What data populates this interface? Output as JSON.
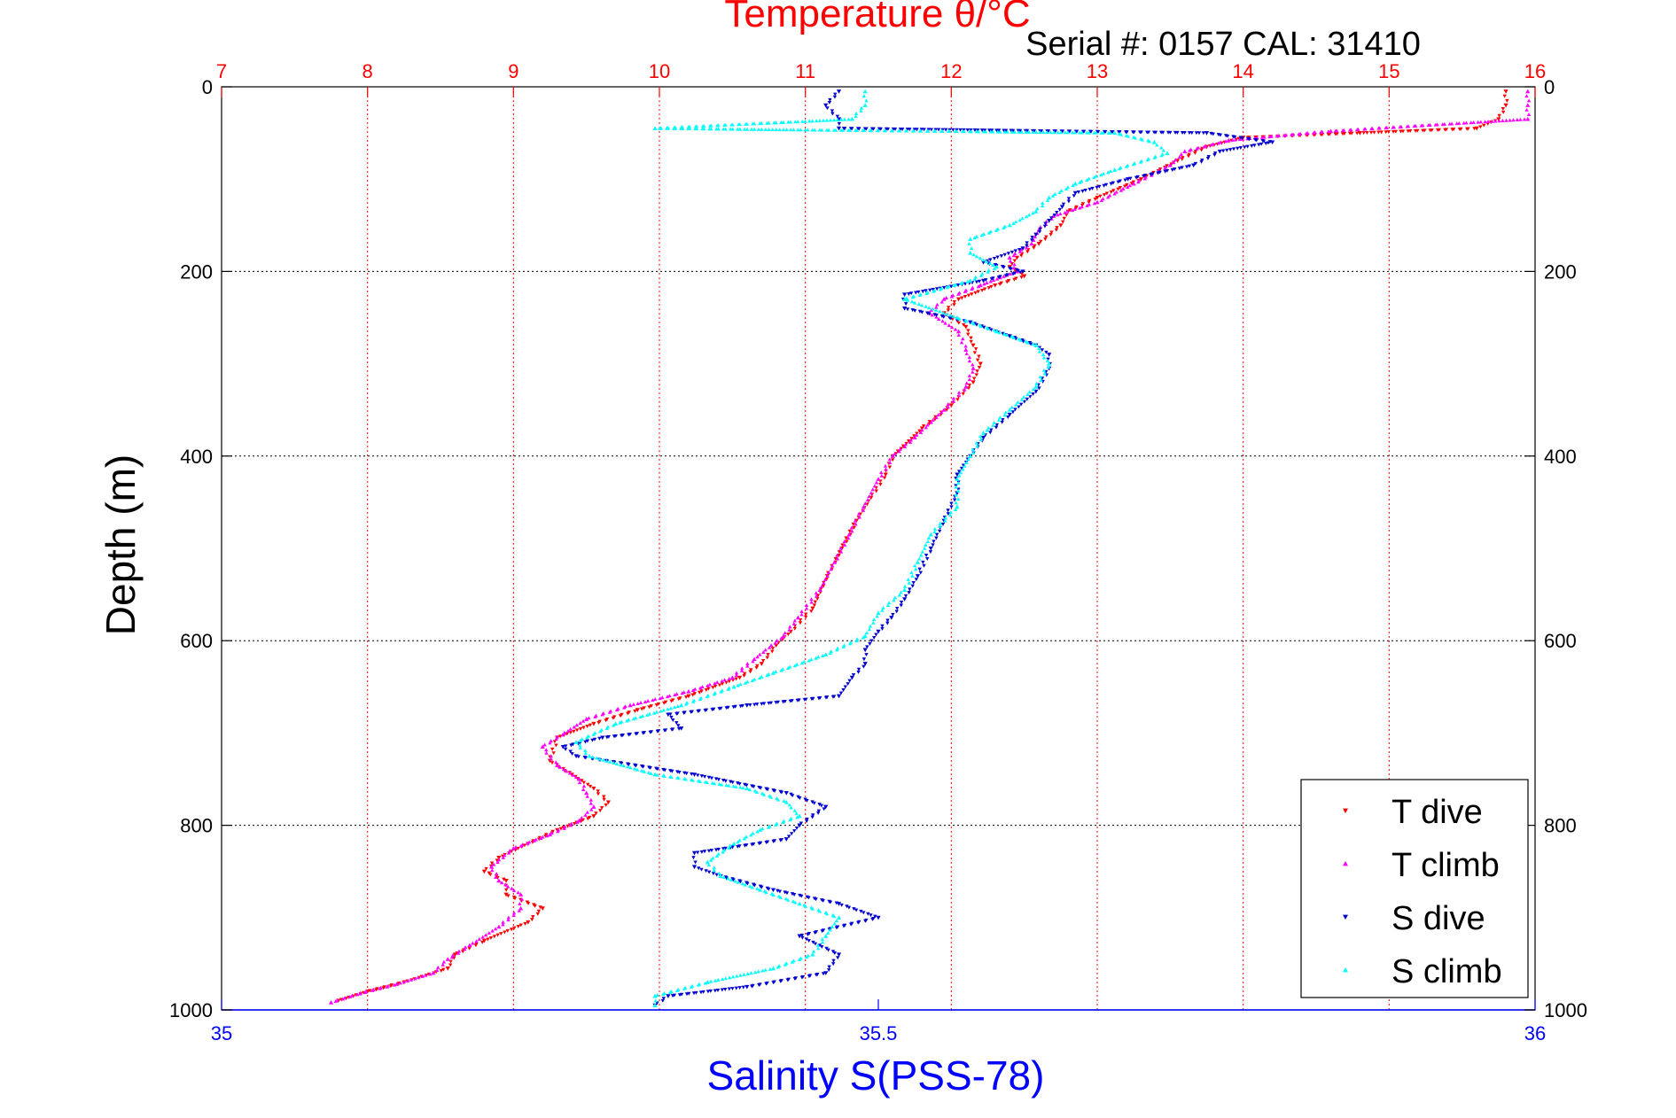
{
  "chart_data": {
    "type": "scatter",
    "title": "Temperature θ/°C",
    "subtitle": "Serial #: 0157  CAL: 31410",
    "ylabel": "Depth (m)",
    "xlabel_top": "Temperature θ/°C",
    "xlabel_bottom": "Salinity S(PSS-78)",
    "ylim": [
      0,
      1000
    ],
    "y_reversed": true,
    "x_top_lim": [
      7,
      16
    ],
    "x_bottom_lim": [
      35,
      36
    ],
    "x_top_ticks": [
      "7",
      "8",
      "9",
      "10",
      "11",
      "12",
      "13",
      "14",
      "15",
      "16"
    ],
    "x_bottom_ticks": [
      "35",
      "35.5",
      "36"
    ],
    "y_ticks": [
      "0",
      "200",
      "400",
      "600",
      "800",
      "1000"
    ],
    "grid": true,
    "legend_position": "bottom-right",
    "colors": {
      "temperature_axis": "#ff0000",
      "salinity_axis": "#0000ff",
      "t_dive": "#ff0000",
      "t_climb": "#ff00ff",
      "s_dive": "#0000d0",
      "s_climb": "#00ffff"
    },
    "series": [
      {
        "name": "T dive",
        "axis": "temperature",
        "marker": "triangle-down",
        "points": [
          [
            15.8,
            5
          ],
          [
            15.8,
            20
          ],
          [
            15.75,
            35
          ],
          [
            15.6,
            45
          ],
          [
            14.8,
            50
          ],
          [
            14.0,
            55
          ],
          [
            13.75,
            65
          ],
          [
            13.55,
            80
          ],
          [
            13.3,
            100
          ],
          [
            13.0,
            120
          ],
          [
            12.8,
            135
          ],
          [
            12.75,
            150
          ],
          [
            12.6,
            170
          ],
          [
            12.45,
            185
          ],
          [
            12.4,
            195
          ],
          [
            12.5,
            205
          ],
          [
            12.3,
            215
          ],
          [
            12.05,
            230
          ],
          [
            11.95,
            245
          ],
          [
            12.1,
            260
          ],
          [
            12.15,
            280
          ],
          [
            12.2,
            300
          ],
          [
            12.15,
            320
          ],
          [
            12.0,
            345
          ],
          [
            11.8,
            370
          ],
          [
            11.6,
            400
          ],
          [
            11.55,
            420
          ],
          [
            11.45,
            445
          ],
          [
            11.35,
            470
          ],
          [
            11.25,
            500
          ],
          [
            11.15,
            530
          ],
          [
            11.05,
            565
          ],
          [
            10.9,
            590
          ],
          [
            10.8,
            605
          ],
          [
            10.7,
            625
          ],
          [
            10.55,
            640
          ],
          [
            10.2,
            660
          ],
          [
            9.85,
            675
          ],
          [
            9.55,
            690
          ],
          [
            9.3,
            705
          ],
          [
            9.25,
            730
          ],
          [
            9.4,
            745
          ],
          [
            9.55,
            760
          ],
          [
            9.65,
            775
          ],
          [
            9.55,
            790
          ],
          [
            9.3,
            805
          ],
          [
            9.1,
            820
          ],
          [
            8.9,
            835
          ],
          [
            8.8,
            850
          ],
          [
            8.95,
            860
          ],
          [
            8.95,
            875
          ],
          [
            9.2,
            890
          ],
          [
            9.1,
            905
          ],
          [
            8.8,
            925
          ],
          [
            8.6,
            940
          ],
          [
            8.55,
            955
          ],
          [
            8.25,
            970
          ],
          [
            8.0,
            980
          ],
          [
            7.8,
            990
          ]
        ]
      },
      {
        "name": "T climb",
        "axis": "temperature",
        "marker": "triangle-up",
        "points": [
          [
            15.95,
            5
          ],
          [
            15.95,
            20
          ],
          [
            15.95,
            35
          ],
          [
            14.6,
            48
          ],
          [
            13.9,
            58
          ],
          [
            13.6,
            70
          ],
          [
            13.5,
            85
          ],
          [
            13.25,
            105
          ],
          [
            13.0,
            125
          ],
          [
            12.7,
            140
          ],
          [
            12.6,
            155
          ],
          [
            12.55,
            170
          ],
          [
            12.4,
            185
          ],
          [
            12.45,
            200
          ],
          [
            12.2,
            215
          ],
          [
            11.95,
            230
          ],
          [
            11.85,
            245
          ],
          [
            12.05,
            265
          ],
          [
            12.1,
            285
          ],
          [
            12.15,
            305
          ],
          [
            12.1,
            325
          ],
          [
            11.95,
            350
          ],
          [
            11.75,
            380
          ],
          [
            11.6,
            400
          ],
          [
            11.5,
            425
          ],
          [
            11.4,
            455
          ],
          [
            11.3,
            485
          ],
          [
            11.2,
            515
          ],
          [
            11.1,
            545
          ],
          [
            10.95,
            575
          ],
          [
            10.85,
            595
          ],
          [
            10.65,
            620
          ],
          [
            10.5,
            640
          ],
          [
            10.2,
            655
          ],
          [
            9.8,
            670
          ],
          [
            9.5,
            685
          ],
          [
            9.35,
            700
          ],
          [
            9.2,
            715
          ],
          [
            9.3,
            735
          ],
          [
            9.45,
            750
          ],
          [
            9.5,
            765
          ],
          [
            9.55,
            780
          ],
          [
            9.45,
            795
          ],
          [
            9.25,
            810
          ],
          [
            9.0,
            825
          ],
          [
            8.85,
            845
          ],
          [
            8.9,
            860
          ],
          [
            9.05,
            875
          ],
          [
            9.05,
            890
          ],
          [
            8.9,
            910
          ],
          [
            8.7,
            930
          ],
          [
            8.55,
            945
          ],
          [
            8.45,
            960
          ],
          [
            8.2,
            972
          ],
          [
            7.95,
            982
          ],
          [
            7.75,
            992
          ]
        ]
      },
      {
        "name": "S dive",
        "axis": "salinity",
        "marker": "triangle-down",
        "points": [
          [
            35.47,
            5
          ],
          [
            35.46,
            20
          ],
          [
            35.47,
            35
          ],
          [
            35.47,
            45
          ],
          [
            35.75,
            50
          ],
          [
            35.8,
            60
          ],
          [
            35.76,
            70
          ],
          [
            35.74,
            85
          ],
          [
            35.69,
            100
          ],
          [
            35.65,
            115
          ],
          [
            35.64,
            130
          ],
          [
            35.63,
            145
          ],
          [
            35.62,
            160
          ],
          [
            35.61,
            175
          ],
          [
            35.58,
            190
          ],
          [
            35.61,
            200
          ],
          [
            35.58,
            210
          ],
          [
            35.52,
            225
          ],
          [
            35.52,
            240
          ],
          [
            35.57,
            255
          ],
          [
            35.6,
            270
          ],
          [
            35.62,
            280
          ],
          [
            35.63,
            290
          ],
          [
            35.63,
            305
          ],
          [
            35.62,
            330
          ],
          [
            35.6,
            355
          ],
          [
            35.58,
            380
          ],
          [
            35.57,
            400
          ],
          [
            35.56,
            420
          ],
          [
            35.56,
            440
          ],
          [
            35.55,
            470
          ],
          [
            35.54,
            500
          ],
          [
            35.53,
            530
          ],
          [
            35.52,
            555
          ],
          [
            35.51,
            575
          ],
          [
            35.5,
            590
          ],
          [
            35.49,
            610
          ],
          [
            35.49,
            625
          ],
          [
            35.48,
            640
          ],
          [
            35.47,
            660
          ],
          [
            35.4,
            670
          ],
          [
            35.34,
            680
          ],
          [
            35.35,
            695
          ],
          [
            35.29,
            705
          ],
          [
            35.26,
            715
          ],
          [
            35.27,
            725
          ],
          [
            35.36,
            745
          ],
          [
            35.43,
            765
          ],
          [
            35.46,
            780
          ],
          [
            35.44,
            800
          ],
          [
            35.43,
            815
          ],
          [
            35.36,
            830
          ],
          [
            35.36,
            845
          ],
          [
            35.38,
            855
          ],
          [
            35.42,
            870
          ],
          [
            35.47,
            885
          ],
          [
            35.5,
            900
          ],
          [
            35.44,
            920
          ],
          [
            35.47,
            940
          ],
          [
            35.46,
            960
          ],
          [
            35.4,
            975
          ],
          [
            35.34,
            985
          ],
          [
            35.33,
            995
          ]
        ]
      },
      {
        "name": "S climb",
        "axis": "salinity",
        "marker": "triangle-up",
        "points": [
          [
            35.49,
            5
          ],
          [
            35.49,
            20
          ],
          [
            35.48,
            35
          ],
          [
            35.33,
            45
          ],
          [
            35.68,
            50
          ],
          [
            35.71,
            60
          ],
          [
            35.72,
            72
          ],
          [
            35.68,
            90
          ],
          [
            35.65,
            105
          ],
          [
            35.63,
            120
          ],
          [
            35.62,
            135
          ],
          [
            35.6,
            150
          ],
          [
            35.57,
            165
          ],
          [
            35.57,
            180
          ],
          [
            35.59,
            195
          ],
          [
            35.57,
            210
          ],
          [
            35.52,
            230
          ],
          [
            35.56,
            250
          ],
          [
            35.59,
            265
          ],
          [
            35.62,
            280
          ],
          [
            35.63,
            300
          ],
          [
            35.62,
            325
          ],
          [
            35.6,
            350
          ],
          [
            35.58,
            375
          ],
          [
            35.57,
            400
          ],
          [
            35.56,
            425
          ],
          [
            35.56,
            455
          ],
          [
            35.54,
            485
          ],
          [
            35.53,
            515
          ],
          [
            35.52,
            545
          ],
          [
            35.5,
            570
          ],
          [
            35.49,
            595
          ],
          [
            35.46,
            615
          ],
          [
            35.42,
            635
          ],
          [
            35.39,
            650
          ],
          [
            35.35,
            670
          ],
          [
            35.3,
            690
          ],
          [
            35.27,
            710
          ],
          [
            35.28,
            725
          ],
          [
            35.33,
            745
          ],
          [
            35.4,
            760
          ],
          [
            35.43,
            775
          ],
          [
            35.44,
            790
          ],
          [
            35.41,
            805
          ],
          [
            35.39,
            820
          ],
          [
            35.37,
            840
          ],
          [
            35.38,
            855
          ],
          [
            35.41,
            870
          ],
          [
            35.44,
            885
          ],
          [
            35.47,
            900
          ],
          [
            35.46,
            920
          ],
          [
            35.45,
            940
          ],
          [
            35.42,
            955
          ],
          [
            35.37,
            970
          ],
          [
            35.33,
            985
          ],
          [
            35.33,
            995
          ]
        ]
      }
    ]
  }
}
